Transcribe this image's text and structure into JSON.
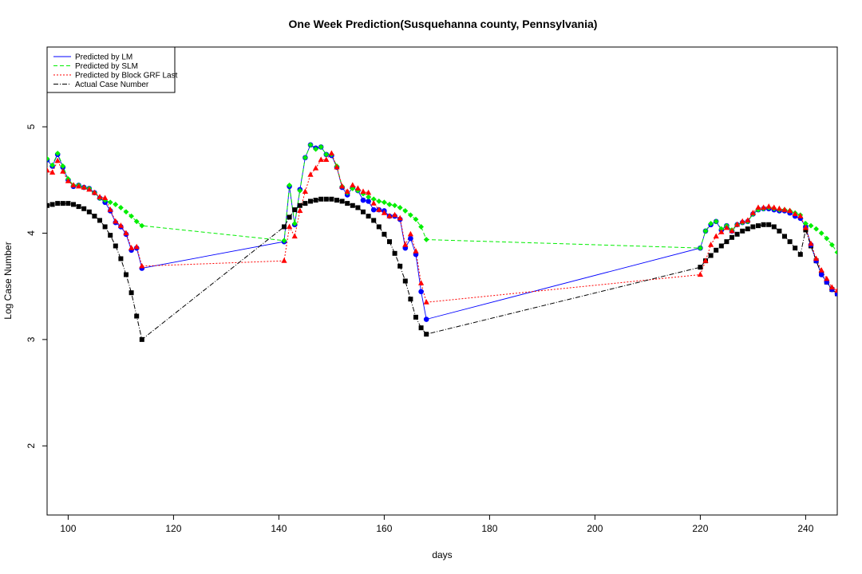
{
  "chart_data": {
    "type": "line",
    "title": "One Week Prediction(Susquehanna county, Pennsylvania)",
    "xlabel": "days",
    "ylabel": "Log Case Number",
    "xlim": [
      96,
      246
    ],
    "ylim": [
      1.35,
      5.75
    ],
    "xticks": [
      100,
      120,
      140,
      160,
      180,
      200,
      220,
      240
    ],
    "yticks": [
      2,
      3,
      4,
      5
    ],
    "xtick_labels": [
      "100",
      "120",
      "140",
      "160",
      "180",
      "200",
      "220",
      "240"
    ],
    "ytick_labels": [
      "2",
      "3",
      "4",
      "5"
    ],
    "legend_position": "top-left",
    "x": [
      96,
      97,
      98,
      99,
      100,
      101,
      102,
      103,
      104,
      105,
      106,
      107,
      108,
      109,
      110,
      111,
      112,
      113,
      114,
      141,
      142,
      143,
      144,
      145,
      146,
      147,
      148,
      149,
      150,
      151,
      152,
      153,
      154,
      155,
      156,
      157,
      158,
      159,
      160,
      161,
      162,
      163,
      164,
      165,
      166,
      167,
      168,
      220,
      221,
      222,
      223,
      224,
      225,
      226,
      227,
      228,
      229,
      230,
      231,
      232,
      233,
      234,
      235,
      236,
      237,
      238,
      239,
      240,
      241,
      242,
      243,
      244,
      245,
      246
    ],
    "series": [
      {
        "name": "Predicted by LM",
        "color": "#0000ff",
        "marker": "circle",
        "values": [
          4.69,
          4.63,
          4.74,
          4.62,
          4.5,
          4.44,
          4.45,
          4.43,
          4.42,
          4.38,
          4.33,
          4.29,
          4.21,
          4.1,
          4.06,
          3.99,
          3.84,
          3.86,
          3.67,
          3.92,
          4.44,
          4.08,
          4.41,
          4.71,
          4.83,
          4.8,
          4.81,
          4.74,
          4.73,
          4.62,
          4.43,
          4.36,
          4.43,
          4.4,
          4.31,
          4.3,
          4.22,
          4.22,
          4.21,
          4.16,
          4.16,
          4.13,
          3.86,
          3.95,
          3.8,
          3.45,
          3.19,
          3.86,
          4.02,
          4.08,
          4.11,
          4.03,
          4.07,
          4.02,
          4.08,
          4.1,
          4.11,
          4.18,
          4.22,
          4.23,
          4.23,
          4.22,
          4.21,
          4.21,
          4.19,
          4.16,
          4.14,
          4.06,
          3.89,
          3.74,
          3.61,
          3.54,
          3.47,
          3.43
        ]
      },
      {
        "name": "Predicted by SLM",
        "color": "#00ee00",
        "marker": "diamond",
        "values": [
          4.7,
          4.64,
          4.75,
          4.63,
          4.51,
          4.45,
          4.45,
          4.43,
          4.42,
          4.38,
          4.33,
          4.31,
          4.29,
          4.27,
          4.24,
          4.2,
          4.16,
          4.11,
          4.07,
          3.93,
          4.45,
          4.09,
          4.4,
          4.71,
          4.83,
          4.79,
          4.81,
          4.74,
          4.74,
          4.63,
          4.44,
          4.38,
          4.42,
          4.4,
          4.37,
          4.34,
          4.32,
          4.3,
          4.29,
          4.27,
          4.26,
          4.24,
          4.21,
          4.17,
          4.13,
          4.06,
          3.94,
          3.86,
          4.02,
          4.09,
          4.11,
          4.04,
          4.07,
          4.03,
          4.08,
          4.1,
          4.11,
          4.18,
          4.22,
          4.23,
          4.24,
          4.23,
          4.22,
          4.22,
          4.21,
          4.19,
          4.17,
          4.09,
          4.07,
          4.04,
          4.0,
          3.95,
          3.89,
          3.82
        ]
      },
      {
        "name": "Predicted by Block GRF Last",
        "color": "#ff0000",
        "marker": "triangle",
        "values": [
          4.59,
          4.57,
          4.68,
          4.58,
          4.49,
          4.45,
          4.44,
          4.43,
          4.41,
          4.38,
          4.34,
          4.33,
          4.22,
          4.11,
          4.07,
          4.0,
          3.86,
          3.87,
          3.69,
          3.74,
          4.06,
          3.97,
          4.21,
          4.39,
          4.55,
          4.61,
          4.69,
          4.69,
          4.75,
          4.62,
          4.44,
          4.39,
          4.45,
          4.42,
          4.39,
          4.38,
          4.28,
          4.22,
          4.19,
          4.16,
          4.17,
          4.14,
          3.89,
          3.99,
          3.83,
          3.53,
          3.35,
          3.61,
          3.74,
          3.89,
          3.97,
          4.01,
          4.05,
          4.02,
          4.08,
          4.11,
          4.12,
          4.19,
          4.24,
          4.24,
          4.25,
          4.24,
          4.23,
          4.22,
          4.21,
          4.18,
          4.16,
          4.05,
          3.9,
          3.76,
          3.65,
          3.57,
          3.49,
          3.46
        ]
      },
      {
        "name": "Actual Case Number",
        "color": "#000000",
        "marker": "square",
        "values": [
          4.26,
          4.27,
          4.28,
          4.28,
          4.28,
          4.27,
          4.25,
          4.23,
          4.2,
          4.16,
          4.12,
          4.06,
          3.98,
          3.88,
          3.76,
          3.61,
          3.44,
          3.22,
          3.0,
          4.06,
          4.15,
          4.22,
          4.26,
          4.28,
          4.3,
          4.31,
          4.32,
          4.32,
          4.32,
          4.31,
          4.3,
          4.28,
          4.26,
          4.24,
          4.2,
          4.16,
          4.12,
          4.06,
          3.99,
          3.92,
          3.81,
          3.69,
          3.55,
          3.38,
          3.21,
          3.11,
          3.05,
          3.68,
          3.74,
          3.79,
          3.84,
          3.88,
          3.92,
          3.96,
          3.99,
          4.02,
          4.04,
          4.06,
          4.07,
          4.08,
          4.08,
          4.06,
          4.02,
          3.97,
          3.92,
          3.86,
          3.8,
          4.03,
          3.88,
          3.74,
          3.62,
          3.54,
          3.47,
          3.43
        ]
      }
    ]
  }
}
